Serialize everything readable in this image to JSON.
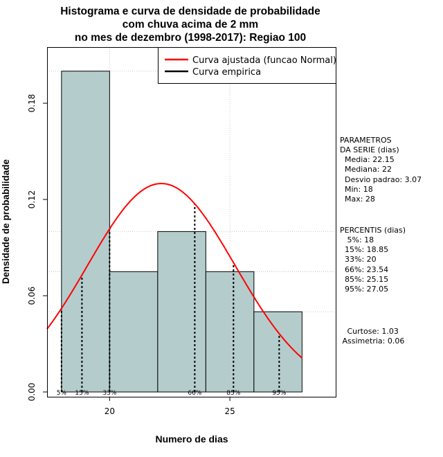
{
  "chart_data": {
    "type": "bar",
    "title_lines": [
      "Histograma e curva de densidade de probabilidade",
      "com chuva acima de 2 mm",
      "no mes de dezembro (1998-2017): Regiao 100"
    ],
    "xlabel": "Numero de dias",
    "ylabel": "Densidade de probabilidade",
    "xlim": [
      17.4,
      29.4
    ],
    "ylim": [
      -0.003,
      0.215
    ],
    "x_ticks": [
      20,
      25
    ],
    "y_ticks": [
      0.0,
      0.06,
      0.12,
      0.18
    ],
    "y_tick_labels": [
      "0.00",
      "0.06",
      "0.12",
      "0.18"
    ],
    "grid": true,
    "bins": [
      {
        "start": 18,
        "end": 20,
        "density": 0.2
      },
      {
        "start": 20,
        "end": 22,
        "density": 0.075
      },
      {
        "start": 22,
        "end": 24,
        "density": 0.1
      },
      {
        "start": 24,
        "end": 26,
        "density": 0.075
      },
      {
        "start": 26,
        "end": 28,
        "density": 0.05
      }
    ],
    "fitted_curve": {
      "name": "Curva ajustada (funcao Normal)",
      "color": "#ff0000",
      "mean": 22.15,
      "sd": 3.07
    },
    "empirical_curve": {
      "name": "Curva empirica",
      "color": "#000000"
    },
    "bar_color": "#b4cccc",
    "percentiles": [
      {
        "label": "5%",
        "x": 18
      },
      {
        "label": "15%",
        "x": 18.85
      },
      {
        "label": "33%",
        "x": 20
      },
      {
        "label": "66%",
        "x": 23.54
      },
      {
        "label": "85%",
        "x": 25.15
      },
      {
        "label": "95%",
        "x": 27.05
      }
    ],
    "legend_position": "top-right"
  },
  "side_panel": {
    "params_title_1": "PARAMETROS",
    "params_title_2": "DA SERIE (dias)",
    "media": "  Media: 22.15",
    "mediana": "  Mediana: 22",
    "desvio": "  Desvio padrao: 3.07",
    "min": "  Min: 18",
    "max": "  Max: 28",
    "perc_title": "PERCENTIS (dias)",
    "p5": "   5%: 18",
    "p15": "  15%: 18.85",
    "p33": "  33%: 20",
    "p66": "  66%: 23.54",
    "p85": "  85%: 25.15",
    "p95": "  95%: 27.05",
    "curtose": "   Curtose: 1.03",
    "assimetria": " Assimetria: 0.06"
  }
}
